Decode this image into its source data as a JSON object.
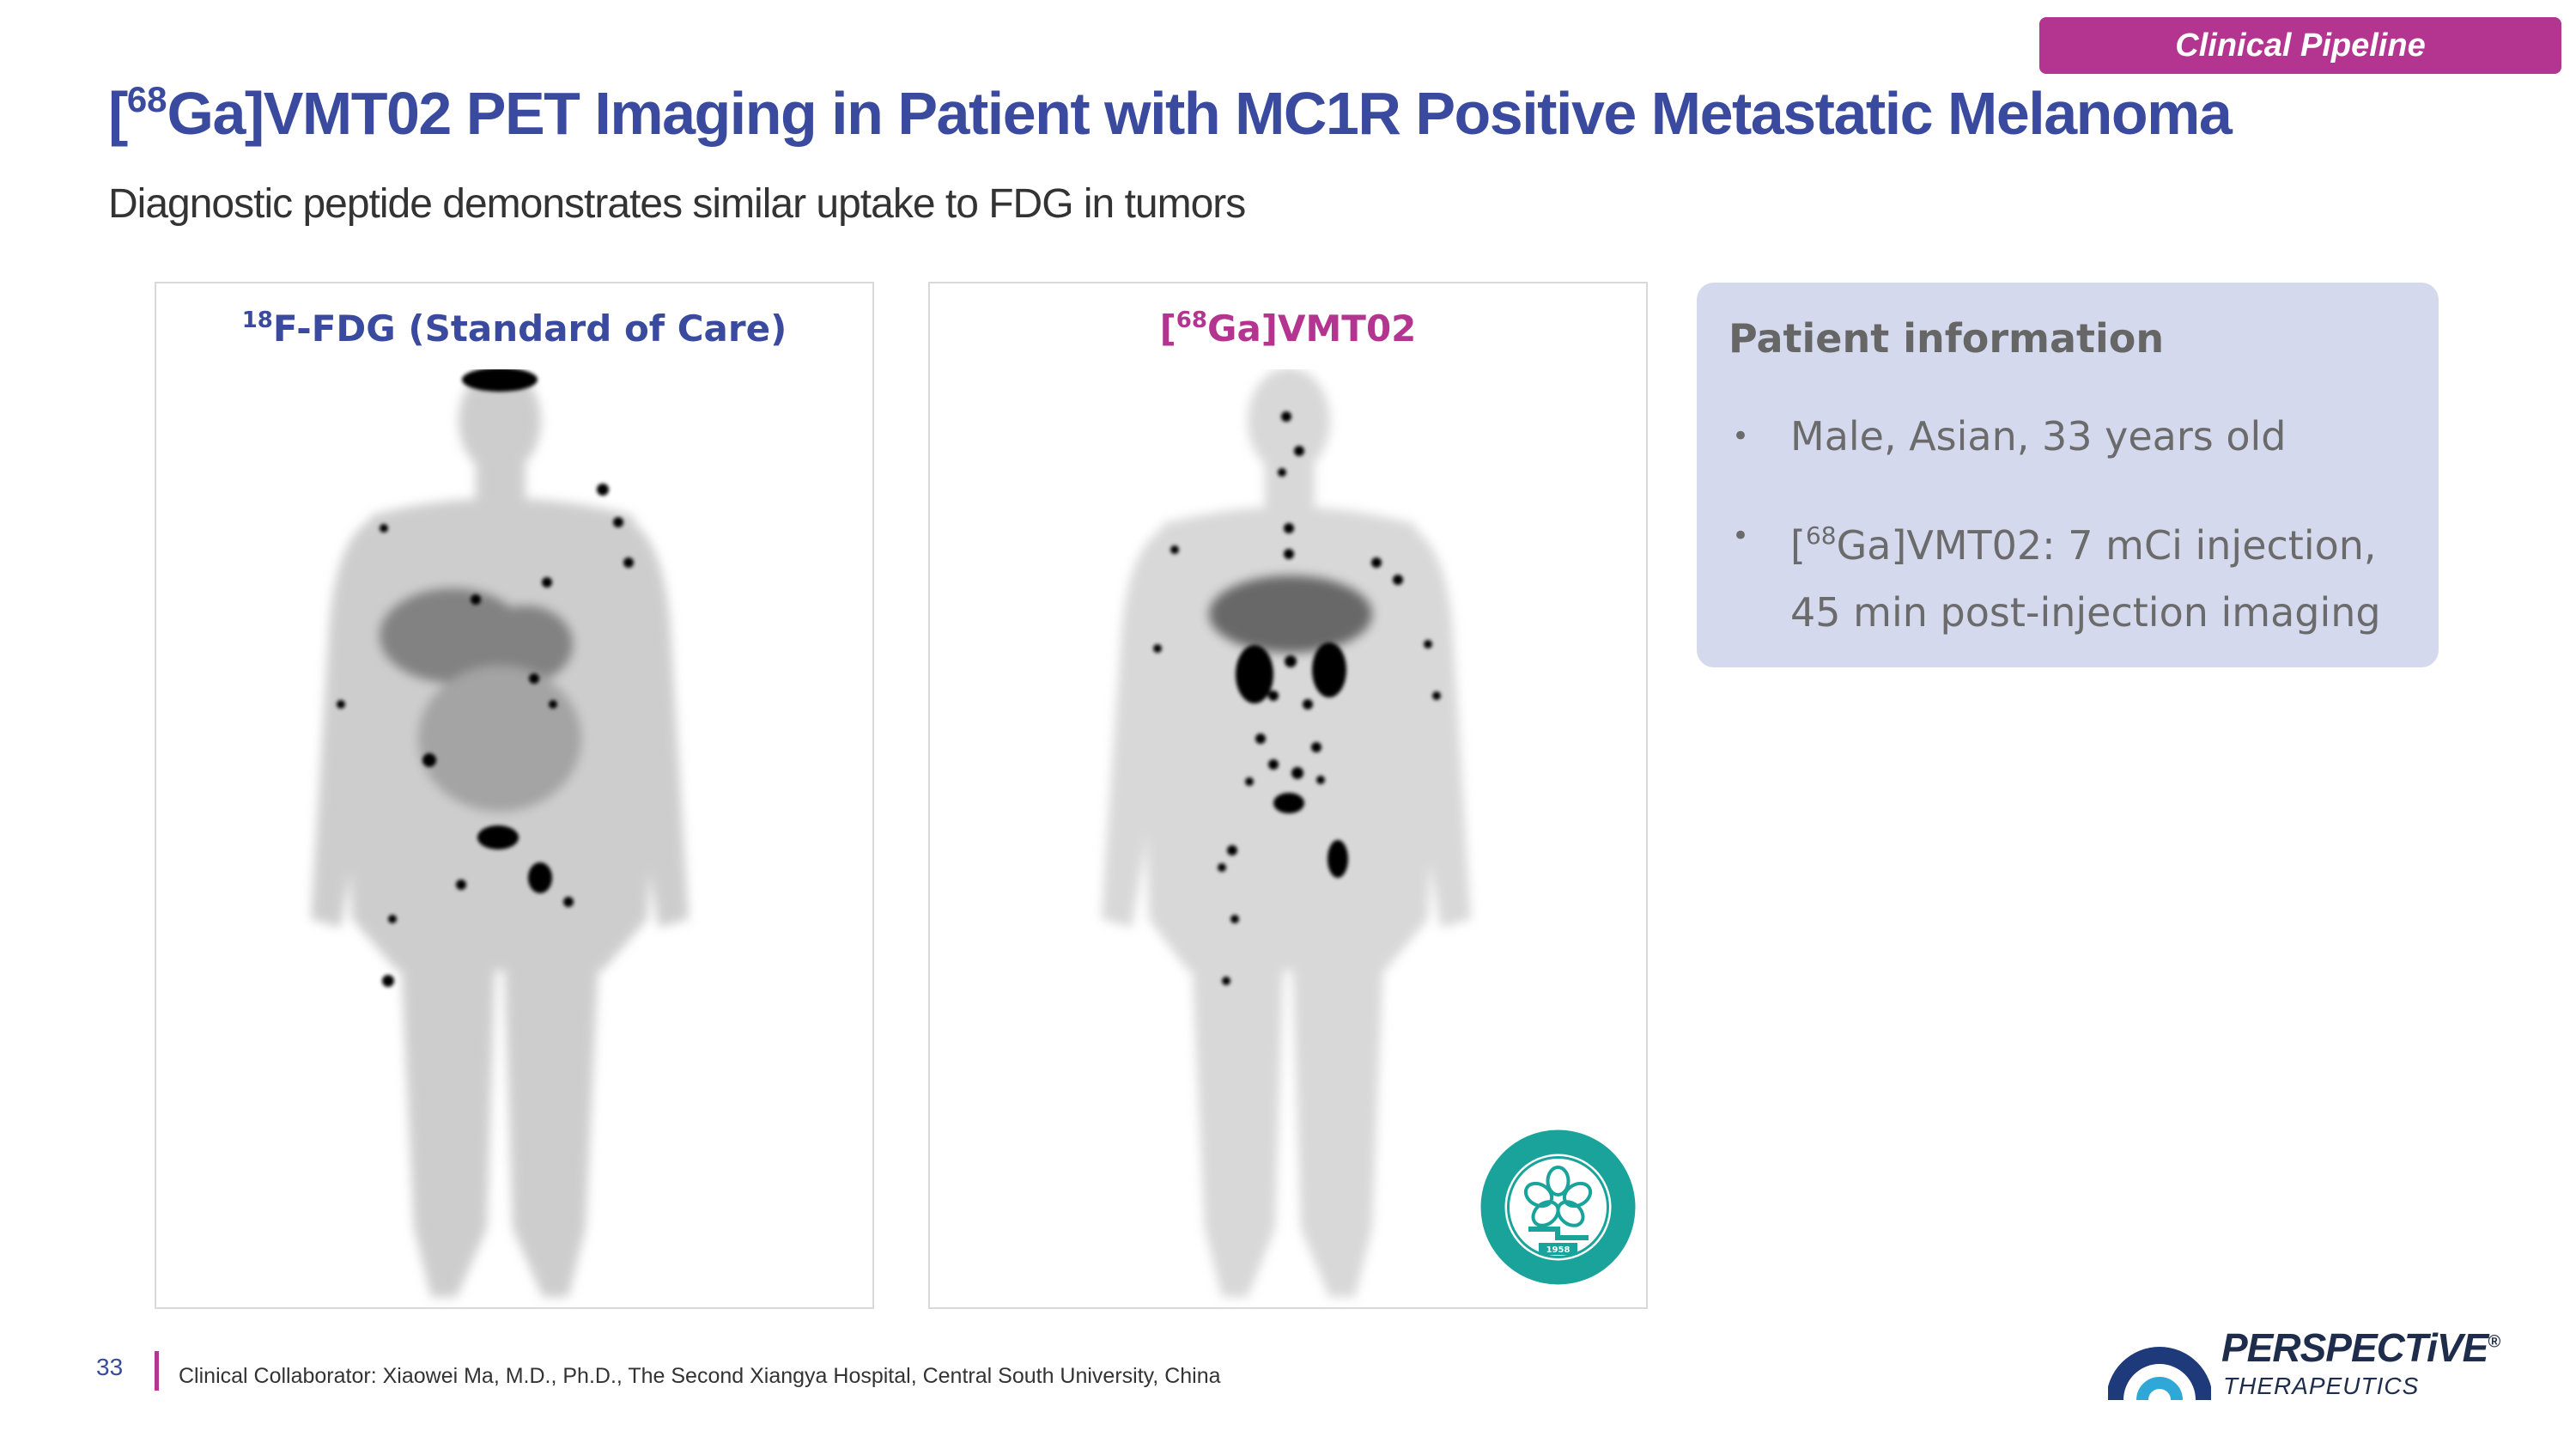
{
  "header": {
    "tag_label": "Clinical Pipeline",
    "title_prefix": "[",
    "title_sup": "68",
    "title_rest": "Ga]VMT02 PET Imaging in Patient with MC1R Positive Metastatic Melanoma",
    "subtitle": "Diagnostic peptide demonstrates similar uptake to FDG in tumors"
  },
  "panels": {
    "left": {
      "label_sup": "18",
      "label_rest": "F-FDG (Standard of Care)",
      "image": "pet-scan-fdg"
    },
    "right": {
      "label_prefix": "[",
      "label_sup": "68",
      "label_rest": "Ga]VMT02",
      "image": "pet-scan-vmt02",
      "seal_year": "1958"
    }
  },
  "patient_info": {
    "title": "Patient information",
    "bullet": "•",
    "items": [
      {
        "text": "Male, Asian, 33 years old"
      },
      {
        "prefix": "[",
        "sup": "68",
        "text": "Ga]VMT02: 7 mCi injection, 45 min post-injection imaging"
      }
    ]
  },
  "footer": {
    "page_number": "33",
    "note": "Clinical Collaborator: Xiaowei Ma, M.D., Ph.D., The Second Xiangya Hospital, Central South University, China"
  },
  "logo": {
    "name": "PERSPECTiVE",
    "trademark": "®",
    "subtitle": "THERAPEUTICS"
  },
  "colors": {
    "title_blue": "#3a4a9f",
    "accent_magenta": "#b3358f",
    "info_box_bg": "#d4d9ee",
    "seal_green": "#1aa39a"
  }
}
